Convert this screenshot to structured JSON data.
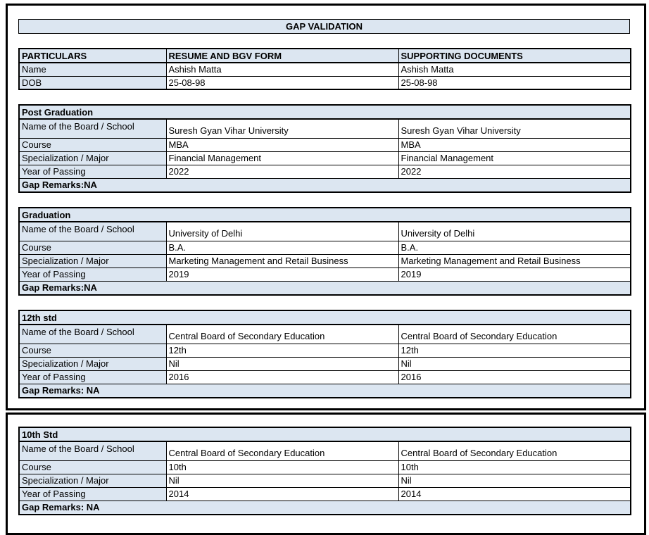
{
  "colors": {
    "shade": "#dce6f1",
    "page_border": "#000000"
  },
  "title": "GAP VALIDATION",
  "summary": {
    "headers": [
      "PARTICULARS",
      "RESUME AND BGV FORM",
      "SUPPORTING DOCUMENTS"
    ],
    "rows": [
      {
        "label": "Name",
        "resume": "Ashish Matta",
        "supporting": "Ashish Matta"
      },
      {
        "label": "DOB",
        "resume": "25-08-98",
        "supporting": "25-08-98"
      }
    ]
  },
  "sections": [
    {
      "title": "Post Graduation",
      "rows": [
        {
          "label": "Name of the Board / School",
          "resume": "Suresh Gyan Vihar University",
          "supporting": "Suresh Gyan Vihar University"
        },
        {
          "label": "Course",
          "resume": "MBA",
          "supporting": "MBA"
        },
        {
          "label": "Specialization / Major",
          "resume": "Financial Management",
          "supporting": "Financial Management"
        },
        {
          "label": "Year of Passing",
          "resume": "2022",
          "supporting": "2022"
        }
      ],
      "gap_remarks": "Gap Remarks:NA"
    },
    {
      "title": "Graduation",
      "rows": [
        {
          "label": "Name of the Board / School",
          "resume": "University of Delhi",
          "supporting": "University of Delhi"
        },
        {
          "label": "Course",
          "resume": "B.A.",
          "supporting": "B.A."
        },
        {
          "label": "Specialization / Major",
          "resume": "Marketing Management and Retail Business",
          "supporting": "Marketing Management and Retail Business"
        },
        {
          "label": "Year of Passing",
          "resume": "2019",
          "supporting": "2019"
        }
      ],
      "gap_remarks": "Gap Remarks:NA"
    },
    {
      "title": "12th std",
      "rows": [
        {
          "label": "Name of the Board / School",
          "resume": "Central Board of Secondary Education",
          "supporting": "Central Board of Secondary Education"
        },
        {
          "label": "Course",
          "resume": "12th",
          "supporting": "12th"
        },
        {
          "label": "Specialization / Major",
          "resume": "Nil",
          "supporting": "Nil"
        },
        {
          "label": "Year of Passing",
          "resume": "2016",
          "supporting": "2016"
        }
      ],
      "gap_remarks": "Gap Remarks: NA"
    },
    {
      "title": "10th Std",
      "rows": [
        {
          "label": "Name of the Board / School",
          "resume": "Central Board of Secondary Education",
          "supporting": "Central Board of Secondary Education"
        },
        {
          "label": "Course",
          "resume": "10th",
          "supporting": "10th"
        },
        {
          "label": "Specialization / Major",
          "resume": "Nil",
          "supporting": "Nil"
        },
        {
          "label": "Year of Passing",
          "resume": "2014",
          "supporting": "2014"
        }
      ],
      "gap_remarks": "Gap Remarks: NA"
    }
  ]
}
